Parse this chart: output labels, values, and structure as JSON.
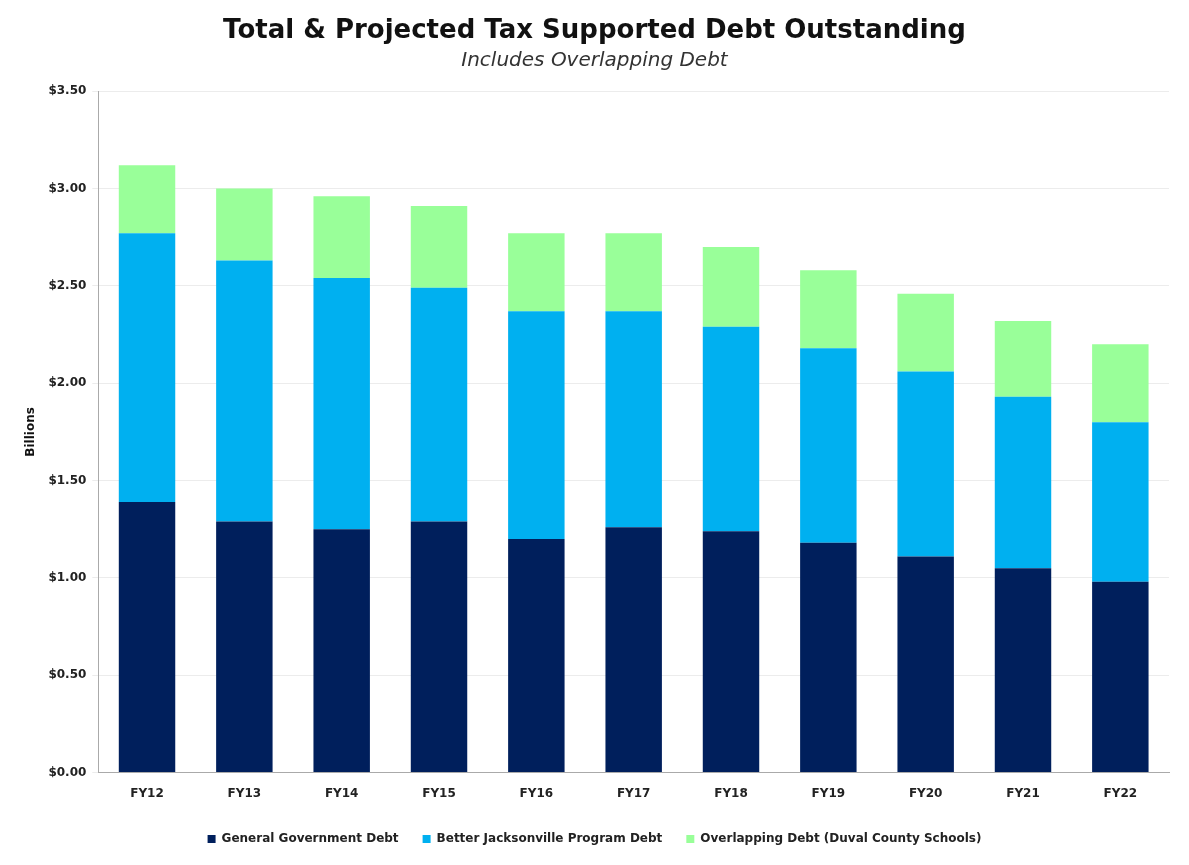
{
  "chart_data": {
    "type": "bar",
    "title": "Total & Projected Tax Supported Debt Outstanding",
    "subtitle": "Includes Overlapping Debt",
    "ylabel": "Billions",
    "categories": [
      "FY12",
      "FY13",
      "FY14",
      "FY15",
      "FY16",
      "FY17",
      "FY18",
      "FY19",
      "FY20",
      "FY21",
      "FY22"
    ],
    "stacked": true,
    "series": [
      {
        "name": "General Government Debt",
        "color": "#001f5c",
        "values": [
          1.39,
          1.29,
          1.25,
          1.29,
          1.2,
          1.26,
          1.24,
          1.18,
          1.11,
          1.05,
          0.98
        ]
      },
      {
        "name": "Better Jacksonville Program Debt",
        "color": "#00b0f0",
        "values": [
          1.38,
          1.34,
          1.29,
          1.2,
          1.17,
          1.11,
          1.05,
          1.0,
          0.95,
          0.88,
          0.82
        ]
      },
      {
        "name": "Overlapping Debt (Duval County Schools)",
        "color": "#99ff99",
        "values": [
          0.35,
          0.37,
          0.42,
          0.42,
          0.4,
          0.4,
          0.41,
          0.4,
          0.4,
          0.39,
          0.4
        ]
      }
    ],
    "ylim": [
      0,
      3.5
    ],
    "yticks": [
      {
        "value": 0,
        "label": "$0.00"
      },
      {
        "value": 0.5,
        "label": "$0.50"
      },
      {
        "value": 1,
        "label": "$1.00"
      },
      {
        "value": 1.5,
        "label": "$1.50"
      },
      {
        "value": 2,
        "label": "$2.00"
      },
      {
        "value": 2.5,
        "label": "$2.50"
      },
      {
        "value": 3,
        "label": "$3.00"
      },
      {
        "value": 3.5,
        "label": "$3.50"
      }
    ],
    "grid": "y",
    "legend": "bottom"
  }
}
